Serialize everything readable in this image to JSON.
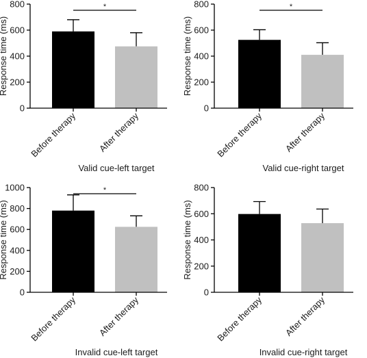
{
  "chart_data": [
    {
      "type": "bar",
      "title": "Valid cue-left target",
      "ylabel": "Response time (ms)",
      "categories": [
        "Before therapy",
        "After therapy"
      ],
      "values": [
        590,
        475
      ],
      "errors": [
        90,
        105
      ],
      "colors": [
        "#000000",
        "#c0c0c0"
      ],
      "ylim": [
        0,
        800
      ],
      "yticks": [
        0,
        200,
        400,
        600,
        800
      ],
      "significance": "*",
      "grid": false
    },
    {
      "type": "bar",
      "title": "Valid cue-right target",
      "ylabel": "Response time (ms)",
      "categories": [
        "Before therapy",
        "After therapy"
      ],
      "values": [
        525,
        410
      ],
      "errors": [
        78,
        93
      ],
      "colors": [
        "#000000",
        "#c0c0c0"
      ],
      "ylim": [
        0,
        800
      ],
      "yticks": [
        0,
        200,
        400,
        600,
        800
      ],
      "significance": "*",
      "grid": false
    },
    {
      "type": "bar",
      "title": "Invalid cue-left target",
      "ylabel": "Response time (ms)",
      "categories": [
        "Before therapy",
        "After therapy"
      ],
      "values": [
        780,
        625
      ],
      "errors": [
        150,
        105
      ],
      "colors": [
        "#000000",
        "#c0c0c0"
      ],
      "ylim": [
        0,
        1000
      ],
      "yticks": [
        0,
        200,
        400,
        600,
        800,
        1000
      ],
      "significance": "*",
      "grid": false
    },
    {
      "type": "bar",
      "title": "Invalid cue-right target",
      "ylabel": "Response time (ms)",
      "categories": [
        "Before therapy",
        "After therapy"
      ],
      "values": [
        598,
        528
      ],
      "errors": [
        95,
        108
      ],
      "colors": [
        "#000000",
        "#c0c0c0"
      ],
      "ylim": [
        0,
        800
      ],
      "yticks": [
        0,
        200,
        400,
        600,
        800
      ],
      "significance": "",
      "grid": false
    }
  ]
}
